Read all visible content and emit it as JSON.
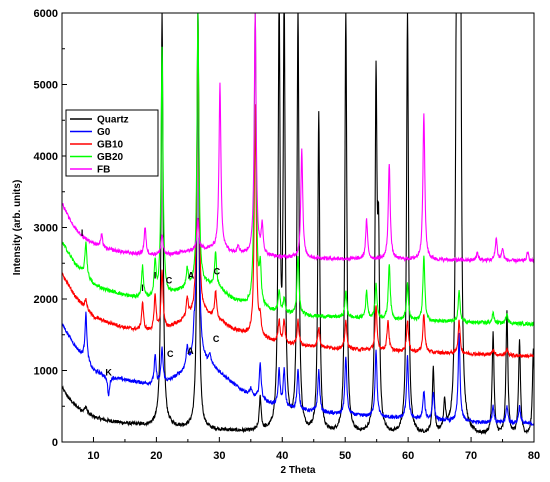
{
  "chart_data": {
    "type": "line",
    "xlabel": "2 Theta",
    "ylabel": "Intensity (arb. units)",
    "xlim": [
      5,
      80
    ],
    "ylim": [
      0,
      6000
    ],
    "xticks": [
      "10",
      "20",
      "30",
      "40",
      "50",
      "60",
      "70",
      "80"
    ],
    "yticks": [
      "0",
      "1000",
      "2000",
      "3000",
      "4000",
      "5000",
      "6000"
    ],
    "grid": false,
    "legend_position": "upper-left",
    "series": [
      {
        "name": "Quartz",
        "color": "#000000",
        "baseline": [
          [
            5,
            760
          ],
          [
            6,
            620
          ],
          [
            7,
            520
          ],
          [
            8,
            450
          ],
          [
            9,
            400
          ],
          [
            10,
            350
          ],
          [
            12,
            300
          ],
          [
            15,
            260
          ],
          [
            18,
            230
          ],
          [
            20,
            220
          ],
          [
            22,
            210
          ],
          [
            25,
            190
          ],
          [
            27,
            170
          ],
          [
            30,
            160
          ],
          [
            35,
            140
          ],
          [
            40,
            120
          ],
          [
            50,
            100
          ],
          [
            60,
            90
          ],
          [
            70,
            80
          ],
          [
            80,
            70
          ]
        ],
        "peaks": [
          [
            8.8,
            500
          ],
          [
            20.9,
            6000
          ],
          [
            26.6,
            6000
          ],
          [
            36.5,
            600
          ],
          [
            39.5,
            6000
          ],
          [
            40.3,
            6000
          ],
          [
            42.5,
            6000
          ],
          [
            45.8,
            4600
          ],
          [
            50.1,
            6000
          ],
          [
            54.9,
            4900
          ],
          [
            55.3,
            2500
          ],
          [
            59.9,
            6000
          ],
          [
            64.0,
            1000
          ],
          [
            65.8,
            500
          ],
          [
            67.7,
            6000
          ],
          [
            68.1,
            5500
          ],
          [
            68.3,
            5800
          ],
          [
            73.5,
            1500
          ],
          [
            75.7,
            1800
          ],
          [
            77.7,
            1400
          ],
          [
            79.9,
            1300
          ]
        ]
      },
      {
        "name": "G0",
        "color": "#0000ff",
        "baseline": [
          [
            5,
            1650
          ],
          [
            6,
            1500
          ],
          [
            7,
            1350
          ],
          [
            8,
            1230
          ],
          [
            9,
            1120
          ],
          [
            10,
            1000
          ],
          [
            12,
            930
          ],
          [
            15,
            870
          ],
          [
            18,
            820
          ],
          [
            20,
            800
          ],
          [
            22,
            850
          ],
          [
            24,
            960
          ],
          [
            25,
            1050
          ],
          [
            26,
            1100
          ],
          [
            27,
            1150
          ],
          [
            28,
            1100
          ],
          [
            29,
            1050
          ],
          [
            30,
            980
          ],
          [
            31,
            900
          ],
          [
            33,
            760
          ],
          [
            35,
            650
          ],
          [
            38,
            540
          ],
          [
            40,
            480
          ],
          [
            45,
            420
          ],
          [
            50,
            380
          ],
          [
            55,
            350
          ],
          [
            60,
            320
          ],
          [
            70,
            280
          ],
          [
            80,
            250
          ]
        ],
        "peaks": [
          [
            8.8,
            1800
          ],
          [
            12.4,
            640
          ],
          [
            19.8,
            1200
          ],
          [
            20.9,
            1300
          ],
          [
            24.9,
            1300
          ],
          [
            26.0,
            1400
          ],
          [
            26.6,
            6000
          ],
          [
            28.5,
            1200
          ],
          [
            35.0,
            750
          ],
          [
            36.5,
            1100
          ],
          [
            39.5,
            1000
          ],
          [
            40.3,
            1000
          ],
          [
            42.5,
            1000
          ],
          [
            45.8,
            1000
          ],
          [
            50.1,
            1200
          ],
          [
            54.9,
            1300
          ],
          [
            59.9,
            1200
          ],
          [
            62.5,
            700
          ],
          [
            64.0,
            700
          ],
          [
            68.1,
            1500
          ],
          [
            73.5,
            500
          ],
          [
            75.7,
            500
          ],
          [
            77.7,
            500
          ]
        ]
      },
      {
        "name": "GB10",
        "color": "#ff0000",
        "baseline": [
          [
            5,
            2350
          ],
          [
            6,
            2200
          ],
          [
            7,
            2050
          ],
          [
            8,
            1950
          ],
          [
            9,
            1850
          ],
          [
            10,
            1750
          ],
          [
            12,
            1680
          ],
          [
            15,
            1600
          ],
          [
            18,
            1550
          ],
          [
            20,
            1550
          ],
          [
            22,
            1600
          ],
          [
            24,
            1680
          ],
          [
            26,
            1760
          ],
          [
            28,
            1780
          ],
          [
            30,
            1700
          ],
          [
            32,
            1580
          ],
          [
            35,
            1480
          ],
          [
            40,
            1370
          ],
          [
            45,
            1330
          ],
          [
            50,
            1300
          ],
          [
            55,
            1280
          ],
          [
            60,
            1260
          ],
          [
            70,
            1230
          ],
          [
            80,
            1200
          ]
        ],
        "peaks": [
          [
            8.8,
            2000
          ],
          [
            17.8,
            1950
          ],
          [
            19.8,
            2050
          ],
          [
            20.9,
            2400
          ],
          [
            24.9,
            2000
          ],
          [
            26.6,
            6000
          ],
          [
            29.4,
            2100
          ],
          [
            35.7,
            4700
          ],
          [
            36.5,
            1700
          ],
          [
            39.5,
            1700
          ],
          [
            40.3,
            1700
          ],
          [
            42.5,
            1700
          ],
          [
            45.8,
            1600
          ],
          [
            50.1,
            1700
          ],
          [
            54.9,
            1900
          ],
          [
            56.8,
            1700
          ],
          [
            59.9,
            1700
          ],
          [
            62.5,
            1800
          ],
          [
            68.1,
            1700
          ],
          [
            73.5,
            1300
          ],
          [
            75.7,
            1300
          ]
        ]
      },
      {
        "name": "GB20",
        "color": "#00ff00",
        "baseline": [
          [
            5,
            2800
          ],
          [
            6,
            2650
          ],
          [
            7,
            2500
          ],
          [
            8,
            2400
          ],
          [
            9,
            2300
          ],
          [
            10,
            2200
          ],
          [
            12,
            2130
          ],
          [
            15,
            2050
          ],
          [
            18,
            2000
          ],
          [
            20,
            2000
          ],
          [
            22,
            2050
          ],
          [
            24,
            2120
          ],
          [
            26,
            2180
          ],
          [
            28,
            2200
          ],
          [
            30,
            2150
          ],
          [
            32,
            2000
          ],
          [
            35,
            1900
          ],
          [
            40,
            1800
          ],
          [
            45,
            1760
          ],
          [
            50,
            1740
          ],
          [
            55,
            1720
          ],
          [
            60,
            1700
          ],
          [
            70,
            1670
          ],
          [
            80,
            1650
          ]
        ],
        "peaks": [
          [
            8.8,
            2800
          ],
          [
            17.8,
            2450
          ],
          [
            19.8,
            2500
          ],
          [
            20.9,
            5500
          ],
          [
            24.9,
            2400
          ],
          [
            26.6,
            6000
          ],
          [
            29.4,
            2650
          ],
          [
            35.7,
            6000
          ],
          [
            36.5,
            2400
          ],
          [
            39.5,
            2100
          ],
          [
            40.3,
            2000
          ],
          [
            42.5,
            2600
          ],
          [
            50.1,
            2100
          ],
          [
            53.4,
            2100
          ],
          [
            54.9,
            2200
          ],
          [
            57.0,
            2500
          ],
          [
            59.9,
            2200
          ],
          [
            62.5,
            2600
          ],
          [
            68.1,
            2100
          ],
          [
            73.5,
            1800
          ],
          [
            75.7,
            1800
          ]
        ]
      },
      {
        "name": "FB",
        "color": "#ff00ff",
        "baseline": [
          [
            5,
            3350
          ],
          [
            6,
            3150
          ],
          [
            7,
            3000
          ],
          [
            8,
            2900
          ],
          [
            9,
            2830
          ],
          [
            10,
            2780
          ],
          [
            12,
            2700
          ],
          [
            15,
            2650
          ],
          [
            18,
            2620
          ],
          [
            20,
            2620
          ],
          [
            22,
            2620
          ],
          [
            24,
            2650
          ],
          [
            26,
            2680
          ],
          [
            28,
            2700
          ],
          [
            30,
            2700
          ],
          [
            32,
            2650
          ],
          [
            35,
            2620
          ],
          [
            40,
            2580
          ],
          [
            50,
            2560
          ],
          [
            60,
            2550
          ],
          [
            70,
            2540
          ],
          [
            80,
            2530
          ]
        ],
        "peaks": [
          [
            11.3,
            2900
          ],
          [
            18.2,
            3000
          ],
          [
            20.9,
            2900
          ],
          [
            26.6,
            3100
          ],
          [
            30.1,
            5000
          ],
          [
            33.0,
            2750
          ],
          [
            35.7,
            6000
          ],
          [
            36.8,
            3000
          ],
          [
            43.1,
            4100
          ],
          [
            53.4,
            3100
          ],
          [
            57.0,
            3900
          ],
          [
            62.5,
            4600
          ],
          [
            71.0,
            2650
          ],
          [
            74.0,
            2850
          ],
          [
            75.0,
            2700
          ],
          [
            79.0,
            2650
          ]
        ]
      }
    ],
    "annotations": [
      {
        "text": "I",
        "x": 8.2,
        "y": 2880
      },
      {
        "text": "I",
        "x": 17.8,
        "y": 2110
      },
      {
        "text": "I",
        "x": 19.8,
        "y": 2290
      },
      {
        "text": "C",
        "x": 22.0,
        "y": 2220
      },
      {
        "text": "A",
        "x": 25.5,
        "y": 2290
      },
      {
        "text": "C",
        "x": 29.6,
        "y": 2340
      },
      {
        "text": "K",
        "x": 12.4,
        "y": 930
      },
      {
        "text": "C",
        "x": 22.2,
        "y": 1190
      },
      {
        "text": "A",
        "x": 25.4,
        "y": 1230
      },
      {
        "text": "C",
        "x": 29.5,
        "y": 1400
      }
    ]
  }
}
